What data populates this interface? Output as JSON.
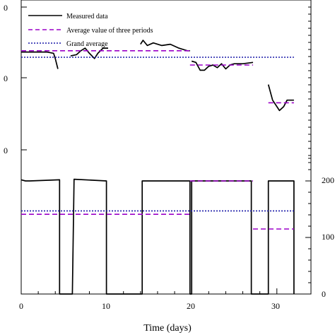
{
  "chart_data": [
    {
      "type": "line",
      "panel": "top",
      "xlabel": "Time (days)",
      "y_tick_labels": [
        "0",
        "0",
        "0"
      ],
      "legend": {
        "placement": "top-left",
        "entries": [
          {
            "label": "Measured data",
            "style": "solid",
            "color": "#000000"
          },
          {
            "label": "Average value of three periods",
            "style": "dashed",
            "color": "#9b00c8"
          },
          {
            "label": "Grand average",
            "style": "dotted",
            "color": "#1a1aa8"
          }
        ]
      },
      "series": [
        {
          "name": "Measured data",
          "segments": [
            [
              [
                0,
                33.5
              ],
              [
                1,
                33.5
              ],
              [
                2,
                33.5
              ],
              [
                3,
                33.5
              ],
              [
                3.8,
                33.4
              ],
              [
                4,
                33.0
              ],
              [
                4.3,
                32.2
              ]
            ],
            [
              [
                5.8,
                33.2
              ],
              [
                6.5,
                33.3
              ],
              [
                7,
                33.6
              ],
              [
                7.5,
                33.8
              ],
              [
                8,
                33.4
              ],
              [
                8.6,
                33.0
              ],
              [
                9,
                33.4
              ],
              [
                9.6,
                33.8
              ],
              [
                10.2,
                33.8
              ]
            ],
            [
              [
                14,
                34.1
              ],
              [
                14.3,
                34.4
              ],
              [
                14.8,
                34.0
              ],
              [
                15.5,
                34.2
              ],
              [
                16.5,
                34.0
              ],
              [
                17.5,
                34.1
              ],
              [
                18.5,
                33.8
              ],
              [
                19.5,
                33.6
              ],
              [
                19.8,
                33.6
              ]
            ],
            [
              [
                20,
                32.8
              ],
              [
                20.5,
                32.7
              ],
              [
                21,
                32.1
              ],
              [
                21.5,
                32.1
              ],
              [
                22,
                32.4
              ],
              [
                22.5,
                32.5
              ],
              [
                23,
                32.3
              ],
              [
                23.5,
                32.6
              ],
              [
                24,
                32.2
              ],
              [
                24.5,
                32.5
              ],
              [
                25,
                32.6
              ],
              [
                26,
                32.6
              ],
              [
                27.2,
                32.7
              ]
            ],
            [
              [
                29,
                31.0
              ],
              [
                29.5,
                29.8
              ],
              [
                30,
                29.3
              ],
              [
                30.3,
                29.0
              ],
              [
                30.8,
                29.3
              ],
              [
                31.2,
                29.8
              ],
              [
                32,
                29.8
              ]
            ]
          ]
        },
        {
          "name": "Average value of three periods",
          "segments": [
            [
              [
                0,
                33.6
              ],
              [
                19.8,
                33.6
              ]
            ],
            [
              [
                19.8,
                32.5
              ],
              [
                27.2,
                32.5
              ]
            ],
            [
              [
                29,
                29.6
              ],
              [
                32,
                29.6
              ]
            ]
          ]
        },
        {
          "name": "Grand average",
          "segments": [
            [
              [
                0,
                33.1
              ],
              [
                32,
                33.1
              ]
            ]
          ]
        }
      ]
    },
    {
      "type": "line",
      "panel": "bottom",
      "y_right_ticks": [
        0,
        100,
        200
      ],
      "series": [
        {
          "name": "Measured data",
          "points": [
            [
              0,
              202
            ],
            [
              0.5,
              200
            ],
            [
              1,
              200
            ],
            [
              4.5,
              202
            ],
            [
              4.5,
              0
            ],
            [
              6,
              0
            ],
            [
              6.2,
              203
            ],
            [
              10,
              200
            ],
            [
              10,
              0
            ],
            [
              14.2,
              0
            ],
            [
              14.2,
              200
            ],
            [
              19.8,
              200
            ],
            [
              19.8,
              0
            ],
            [
              20,
              0
            ],
            [
              20,
              200
            ],
            [
              27,
              200
            ],
            [
              27,
              0
            ],
            [
              29,
              0
            ],
            [
              29,
              200
            ],
            [
              32,
              200
            ],
            [
              32,
              0
            ]
          ]
        },
        {
          "name": "Average value of three periods",
          "segments": [
            [
              [
                0,
                141
              ],
              [
                19.8,
                141
              ]
            ],
            [
              [
                19.8,
                200
              ],
              [
                27.2,
                200
              ]
            ],
            [
              [
                27.2,
                115
              ],
              [
                32,
                115
              ]
            ]
          ]
        },
        {
          "name": "Grand average",
          "segments": [
            [
              [
                0,
                147
              ],
              [
                32,
                147
              ]
            ]
          ]
        }
      ]
    }
  ],
  "x_axis": {
    "xlim": [
      0,
      34
    ],
    "ticks": [
      0,
      10,
      20,
      30
    ],
    "tick_labels": [
      "0",
      "10",
      "20",
      "30"
    ],
    "label": "Time (days)"
  },
  "top_ylim": [
    25,
    37.5
  ],
  "bottom_ylim": [
    0,
    300
  ],
  "colors": {
    "measured": "#000000",
    "period_avg": "#9b00c8",
    "grand_avg": "#1a1aa8"
  }
}
